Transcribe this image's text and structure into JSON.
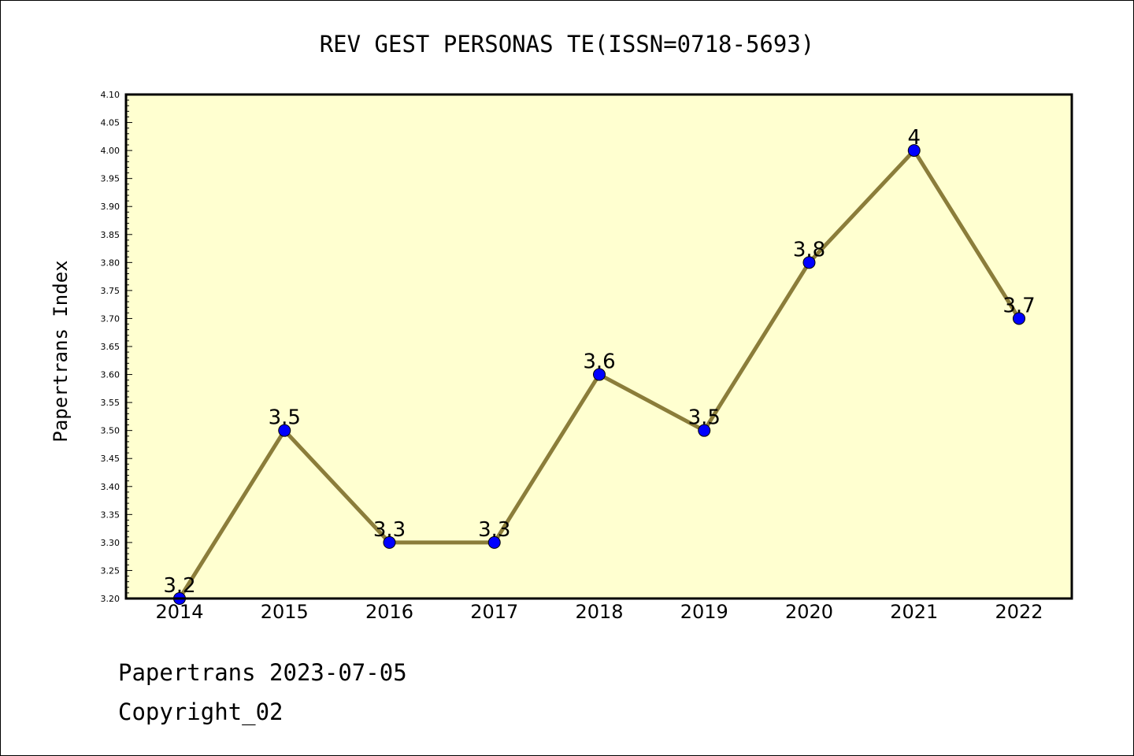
{
  "chart_data": {
    "type": "line",
    "title": "REV GEST PERSONAS TE(ISSN=0718-5693)",
    "ylabel": "Papertrans Index",
    "xlabel": "",
    "categories": [
      "2014",
      "2015",
      "2016",
      "2017",
      "2018",
      "2019",
      "2020",
      "2021",
      "2022"
    ],
    "values": [
      3.2,
      3.5,
      3.3,
      3.3,
      3.6,
      3.5,
      3.8,
      4.0,
      3.7
    ],
    "data_labels": [
      "3.2",
      "3.5",
      "3.3",
      "3.3",
      "3.6",
      "3.5",
      "3.8",
      "4",
      "3.7"
    ],
    "ylim": [
      3.2,
      4.1
    ],
    "yticks": [
      "3.20",
      "3.25",
      "3.30",
      "3.35",
      "3.40",
      "3.45",
      "3.50",
      "3.55",
      "3.60",
      "3.65",
      "3.70",
      "3.75",
      "3.80",
      "3.85",
      "3.90",
      "3.95",
      "4.00",
      "4.05",
      "4.10"
    ],
    "grid": false,
    "line_color": "#8b7d3a",
    "marker_color": "#0000ff",
    "plot_background": "#ffffd0"
  },
  "footer": {
    "line1": "Papertrans 2023-07-05",
    "line2": "Copyright_02"
  }
}
